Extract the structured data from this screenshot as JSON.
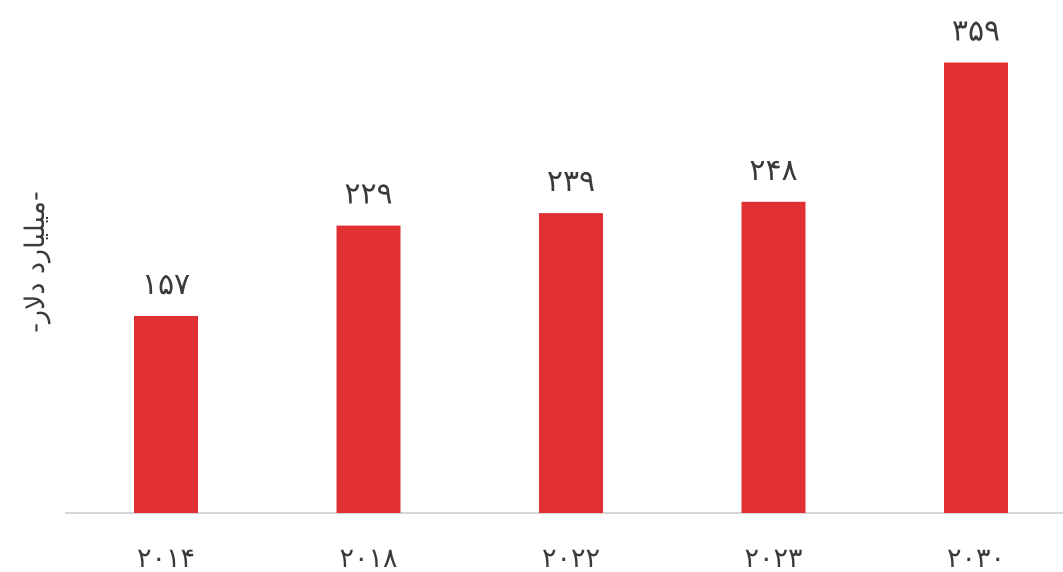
{
  "chart_data": {
    "type": "bar",
    "categories": [
      "۲۰۱۴",
      "۲۰۱۸",
      "۲۰۲۲",
      "۲۰۲۳",
      "۲۰۳۰"
    ],
    "values": [
      157,
      229,
      239,
      248,
      359
    ],
    "value_labels": [
      "۱۵۷",
      "۲۲۹",
      "۲۳۹",
      "۲۴۸",
      "۳۵۹"
    ],
    "ylabel": "-میلیارد دلار-",
    "xlabel": "",
    "ylim": [
      0,
      390
    ],
    "grid": false,
    "bar_color": "#e03034",
    "axis_color": "#c8c8c8"
  }
}
